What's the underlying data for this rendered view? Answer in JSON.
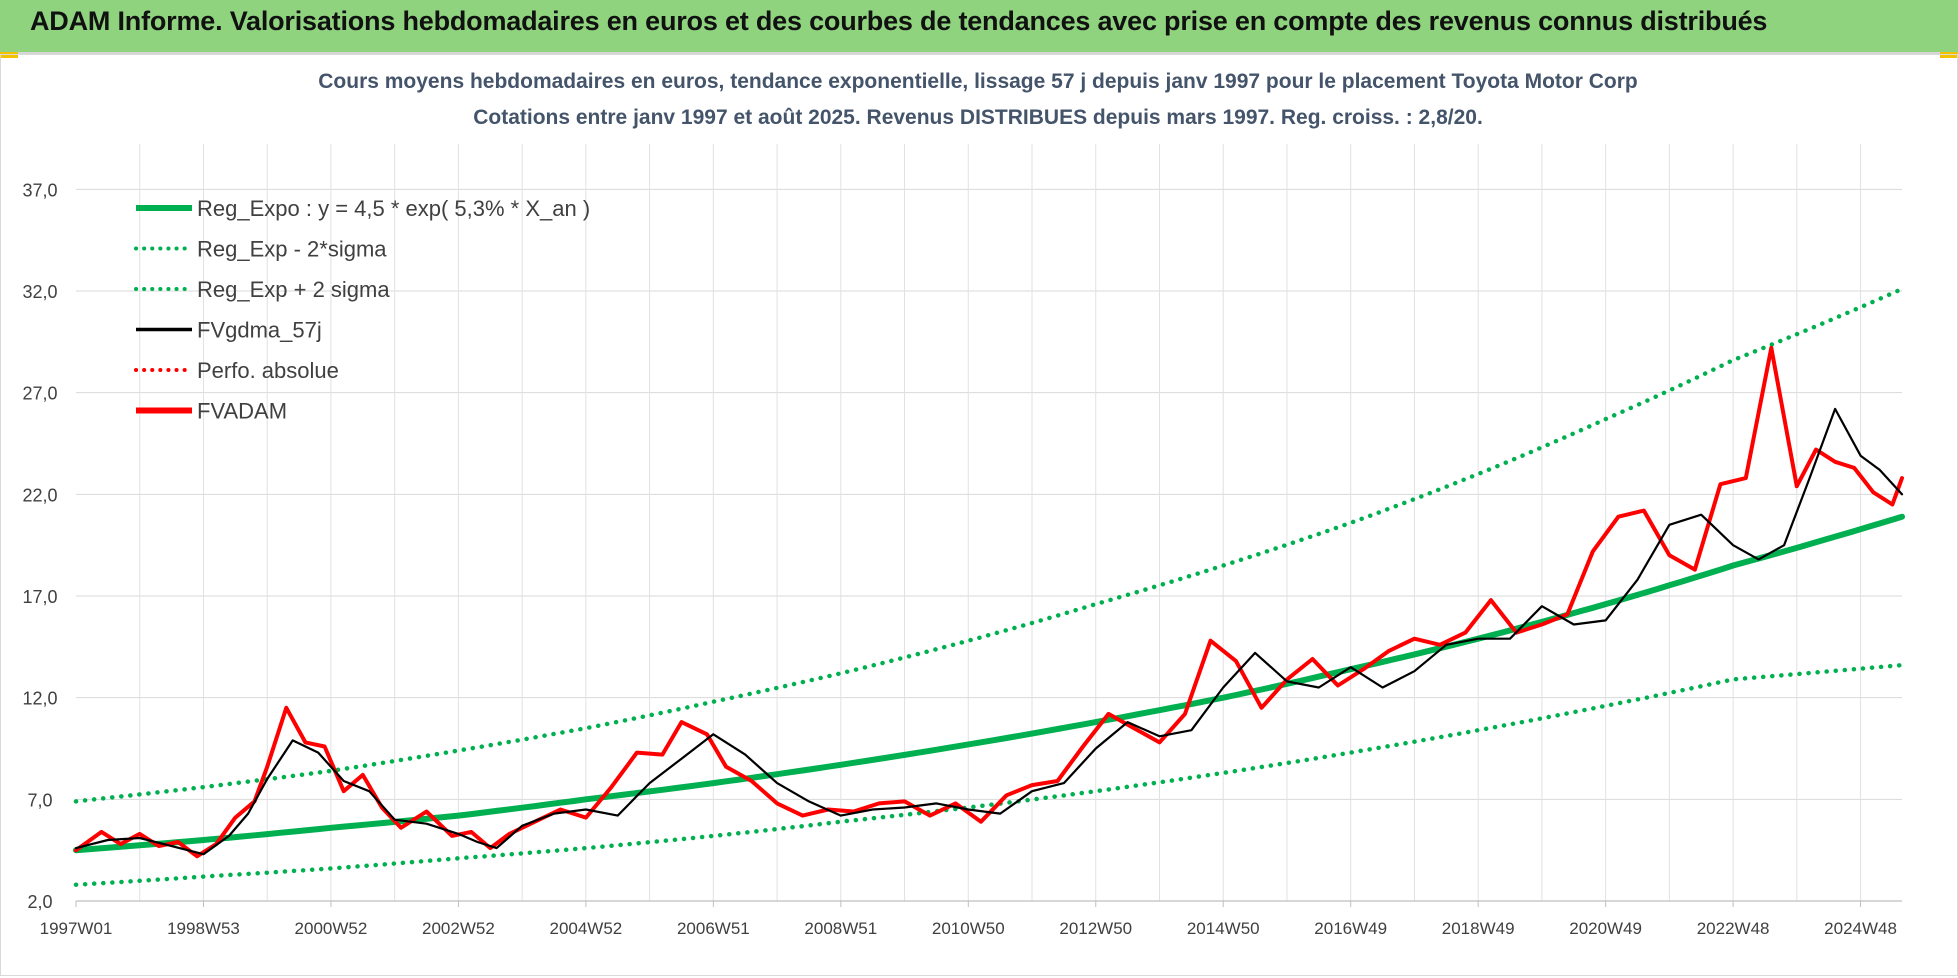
{
  "banner": {
    "title": "ADAM Informe. Valorisations hebdomadaires en euros et des courbes de tendances avec prise en compte des revenus connus distribués",
    "background": "#8fd37f"
  },
  "chart_data": {
    "type": "line",
    "title": "Cours moyens hebdomadaires en euros, tendance exponentielle, lissage 57 j depuis janv 1997  pour le placement Toyota Motor Corp",
    "subtitle": "Cotations entre janv 1997 et août 2025.  Revenus DISTRIBUES depuis mars 1997. Reg. croiss. : 2,8/20.",
    "xlabel": "",
    "ylabel": "",
    "ylim": [
      2.0,
      38.0
    ],
    "xlim": [
      1997.0,
      2025.65
    ],
    "yticks": [
      "37,0",
      "32,0",
      "27,0",
      "22,0",
      "17,0",
      "12,0",
      "7,0",
      "2,0"
    ],
    "ytick_values": [
      37,
      32,
      27,
      22,
      17,
      12,
      7,
      2
    ],
    "xticks": [
      "1997W01",
      "1998W53",
      "2000W52",
      "2002W52",
      "2004W52",
      "2006W51",
      "2008W51",
      "2010W50",
      "2012W50",
      "2014W50",
      "2016W49",
      "2018W49",
      "2020W49",
      "2022W48",
      "2024W48"
    ],
    "grid": true,
    "legend_position": "top-left",
    "legend": [
      {
        "label": "Reg_Expo : y = 4,5 * exp( 5,3% *  X_an )",
        "color": "#00b050",
        "style": "solid-thick"
      },
      {
        "label": "Reg_Exp - 2*sigma",
        "color": "#00b050",
        "style": "dotted"
      },
      {
        "label": "Reg_Exp + 2 sigma",
        "color": "#00b050",
        "style": "dotted"
      },
      {
        "label": "FVgdma_57j",
        "color": "#000000",
        "style": "solid"
      },
      {
        "label": "Perfo. absolue",
        "color": "#ff0000",
        "style": "dotted"
      },
      {
        "label": "FVADAM",
        "color": "#ff0000",
        "style": "solid-thick"
      }
    ],
    "series": [
      {
        "name": "Reg_Expo : y = 4,5 * exp( 5,3% *  X_an )",
        "x": [
          1997.0,
          1999.0,
          2001.0,
          2003.0,
          2005.0,
          2007.0,
          2009.0,
          2011.0,
          2013.0,
          2015.0,
          2017.0,
          2019.0,
          2021.0,
          2023.0,
          2025.65
        ],
        "values": [
          4.5,
          5.0,
          5.6,
          6.2,
          7.0,
          7.8,
          8.7,
          9.7,
          10.8,
          12.0,
          13.4,
          14.9,
          16.6,
          18.5,
          20.9
        ]
      },
      {
        "name": "Reg_Exp - 2*sigma",
        "x": [
          1997.0,
          1999.0,
          2001.0,
          2003.0,
          2005.0,
          2007.0,
          2009.0,
          2011.0,
          2013.0,
          2015.0,
          2017.0,
          2019.0,
          2021.0,
          2023.0,
          2025.65
        ],
        "values": [
          2.8,
          3.2,
          3.6,
          4.1,
          4.6,
          5.2,
          5.9,
          6.6,
          7.4,
          8.3,
          9.3,
          10.4,
          11.6,
          12.9,
          13.6
        ]
      },
      {
        "name": "Reg_Exp + 2 sigma",
        "x": [
          1997.0,
          1999.0,
          2001.0,
          2003.0,
          2005.0,
          2007.0,
          2009.0,
          2011.0,
          2013.0,
          2015.0,
          2017.0,
          2019.0,
          2021.0,
          2023.0,
          2025.65
        ],
        "values": [
          6.9,
          7.6,
          8.4,
          9.4,
          10.5,
          11.8,
          13.2,
          14.8,
          16.6,
          18.5,
          20.6,
          23.0,
          25.7,
          28.6,
          32.1
        ]
      },
      {
        "name": "FVgdma_57j",
        "x": [
          1997.0,
          1997.5,
          1998.0,
          1998.5,
          1999.0,
          1999.4,
          1999.7,
          2000.0,
          2000.4,
          2000.8,
          2001.2,
          2001.6,
          2002.0,
          2002.5,
          2003.0,
          2003.3,
          2003.6,
          2004.0,
          2004.5,
          2005.0,
          2005.5,
          2006.0,
          2006.5,
          2007.0,
          2007.5,
          2008.0,
          2008.5,
          2009.0,
          2009.5,
          2010.0,
          2010.5,
          2011.0,
          2011.5,
          2012.0,
          2012.5,
          2013.0,
          2013.5,
          2014.0,
          2014.5,
          2015.0,
          2015.5,
          2016.0,
          2016.5,
          2017.0,
          2017.5,
          2018.0,
          2018.5,
          2019.0,
          2019.5,
          2020.0,
          2020.5,
          2021.0,
          2021.5,
          2022.0,
          2022.5,
          2023.0,
          2023.4,
          2023.8,
          2024.2,
          2024.6,
          2025.0,
          2025.3,
          2025.65
        ],
        "values": [
          4.6,
          5.0,
          5.1,
          4.7,
          4.3,
          5.2,
          6.3,
          8.0,
          9.9,
          9.3,
          7.9,
          7.4,
          6.0,
          5.8,
          5.3,
          4.9,
          4.6,
          5.7,
          6.3,
          6.5,
          6.2,
          7.8,
          9.0,
          10.2,
          9.2,
          7.8,
          6.9,
          6.2,
          6.5,
          6.6,
          6.8,
          6.5,
          6.3,
          7.4,
          7.8,
          9.5,
          10.8,
          10.1,
          10.4,
          12.5,
          14.2,
          12.8,
          12.5,
          13.5,
          12.5,
          13.3,
          14.6,
          14.9,
          14.9,
          16.5,
          15.6,
          15.8,
          17.8,
          20.5,
          21.0,
          19.5,
          18.8,
          19.5,
          22.8,
          26.2,
          23.9,
          23.2,
          22.0
        ]
      },
      {
        "name": "FVADAM",
        "x": [
          1997.0,
          1997.4,
          1997.7,
          1998.0,
          1998.3,
          1998.6,
          1998.9,
          1999.2,
          1999.5,
          1999.8,
          2000.0,
          2000.3,
          2000.6,
          2000.9,
          2001.2,
          2001.5,
          2001.8,
          2002.1,
          2002.5,
          2002.9,
          2003.2,
          2003.5,
          2003.8,
          2004.2,
          2004.6,
          2005.0,
          2005.4,
          2005.8,
          2006.2,
          2006.5,
          2006.9,
          2007.2,
          2007.6,
          2008.0,
          2008.4,
          2008.8,
          2009.2,
          2009.6,
          2010.0,
          2010.4,
          2010.8,
          2011.2,
          2011.6,
          2012.0,
          2012.4,
          2012.8,
          2013.2,
          2013.6,
          2014.0,
          2014.4,
          2014.8,
          2015.2,
          2015.6,
          2016.0,
          2016.4,
          2016.8,
          2017.2,
          2017.6,
          2018.0,
          2018.4,
          2018.8,
          2019.2,
          2019.6,
          2020.0,
          2020.4,
          2020.8,
          2021.2,
          2021.6,
          2022.0,
          2022.4,
          2022.8,
          2023.2,
          2023.6,
          2024.0,
          2024.3,
          2024.6,
          2024.9,
          2025.2,
          2025.5,
          2025.65
        ],
        "values": [
          4.5,
          5.4,
          4.8,
          5.3,
          4.7,
          4.9,
          4.2,
          4.8,
          6.1,
          6.9,
          8.6,
          11.5,
          9.8,
          9.6,
          7.4,
          8.2,
          6.6,
          5.6,
          6.4,
          5.2,
          5.4,
          4.6,
          5.3,
          5.9,
          6.5,
          6.1,
          7.6,
          9.3,
          9.2,
          10.8,
          10.2,
          8.6,
          7.9,
          6.8,
          6.2,
          6.5,
          6.4,
          6.8,
          6.9,
          6.2,
          6.8,
          5.9,
          7.2,
          7.7,
          7.9,
          9.6,
          11.2,
          10.5,
          9.8,
          11.2,
          14.8,
          13.8,
          11.5,
          12.9,
          13.9,
          12.6,
          13.4,
          14.3,
          14.9,
          14.6,
          15.2,
          16.8,
          15.2,
          15.6,
          16.1,
          19.2,
          20.9,
          21.2,
          19.0,
          18.3,
          22.5,
          22.8,
          29.2,
          22.4,
          24.2,
          23.6,
          23.3,
          22.1,
          21.5,
          22.8
        ]
      }
    ]
  }
}
